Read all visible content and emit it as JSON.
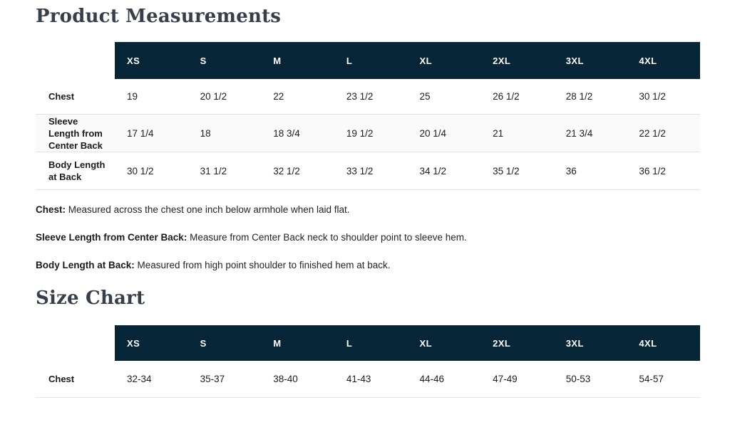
{
  "page": {
    "background": "#ffffff",
    "header_bg": "#062537",
    "header_text_color": "#ffffff",
    "divider_color": "#e3e3e3",
    "alt_row_bg": "#fafafa",
    "heading_color": "#373f4a"
  },
  "headings": {
    "product_measurements": "Product Measurements",
    "size_chart": "Size Chart"
  },
  "measurements_table": {
    "sizes": [
      "XS",
      "S",
      "M",
      "L",
      "XL",
      "2XL",
      "3XL",
      "4XL"
    ],
    "rows": [
      {
        "label": "Chest",
        "values": [
          "19",
          "20 1/2",
          "22",
          "23 1/2",
          "25",
          "26 1/2",
          "28 1/2",
          "30 1/2"
        ]
      },
      {
        "label": "Sleeve Length from Center Back",
        "values": [
          "17 1/4",
          "18",
          "18 3/4",
          "19 1/2",
          "20 1/4",
          "21",
          "21 3/4",
          "22 1/2"
        ]
      },
      {
        "label": "Body Length at Back",
        "values": [
          "30 1/2",
          "31 1/2",
          "32 1/2",
          "33 1/2",
          "34 1/2",
          "35 1/2",
          "36",
          "36 1/2"
        ]
      }
    ]
  },
  "notes": [
    {
      "label": "Chest:",
      "text": "Measured across the chest one inch below armhole when laid flat."
    },
    {
      "label": "Sleeve Length from Center Back:",
      "text": "Measure from Center Back neck to shoulder point to sleeve hem."
    },
    {
      "label": "Body Length at Back:",
      "text": "Measured from high point shoulder to finished hem at back."
    }
  ],
  "size_chart_table": {
    "sizes": [
      "XS",
      "S",
      "M",
      "L",
      "XL",
      "2XL",
      "3XL",
      "4XL"
    ],
    "rows": [
      {
        "label": "Chest",
        "values": [
          "32-34",
          "35-37",
          "38-40",
          "41-43",
          "44-46",
          "47-49",
          "50-53",
          "54-57"
        ]
      }
    ]
  }
}
